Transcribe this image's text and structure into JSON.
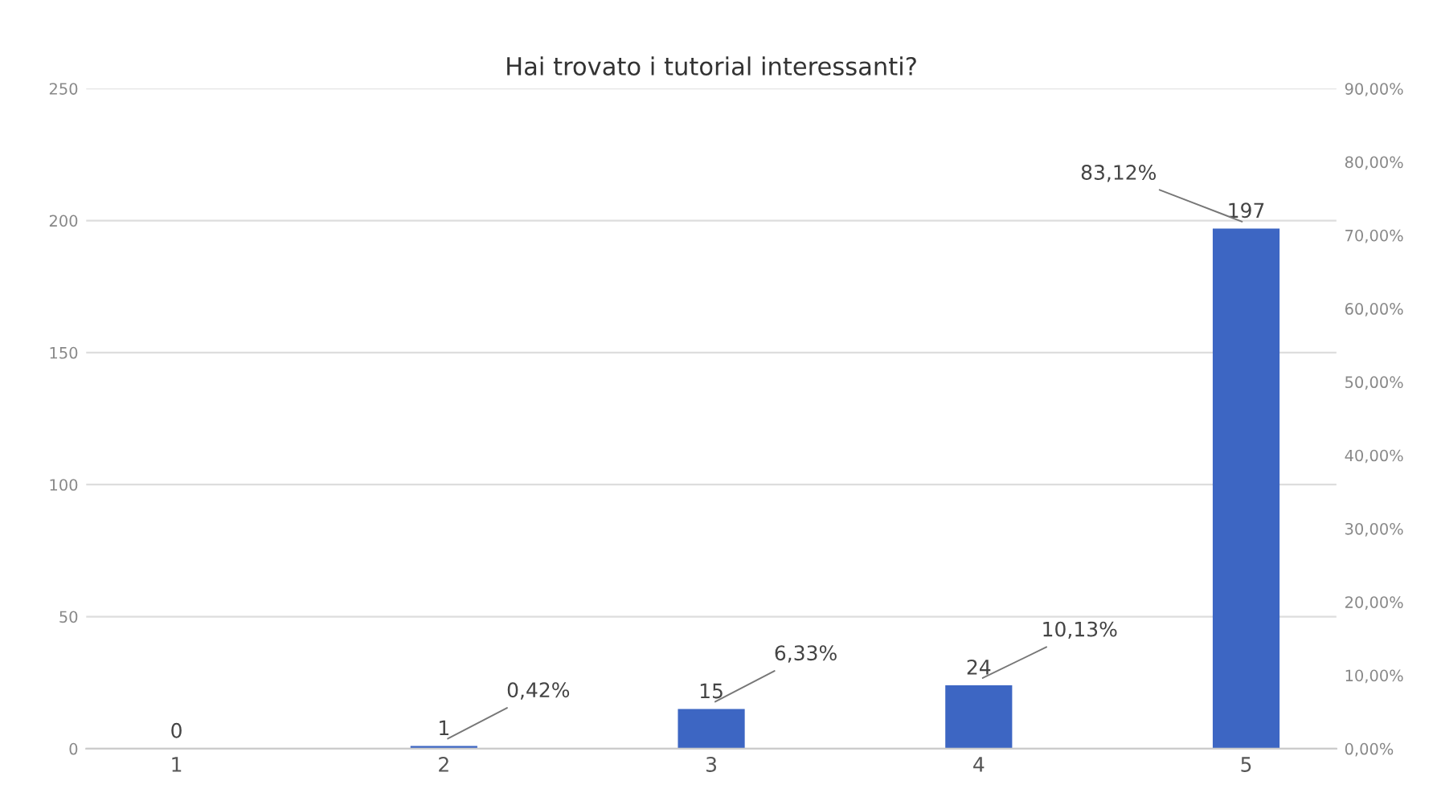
{
  "chart_data": {
    "type": "bar",
    "title": "Hai trovato i tutorial interessanti?",
    "categories": [
      "1",
      "2",
      "3",
      "4",
      "5"
    ],
    "series": [
      {
        "color": "#3d66c3",
        "values": [
          0,
          1,
          15,
          24,
          197
        ]
      }
    ],
    "data_labels": true,
    "ylim": [
      0,
      250
    ],
    "yticks": [
      0,
      50,
      100,
      150,
      200,
      250
    ],
    "y2lim": [
      0,
      90
    ],
    "y2ticks": [
      {
        "value": 0,
        "label": "0,00%"
      },
      {
        "value": 10,
        "label": "10,00%"
      },
      {
        "value": 20,
        "label": "20,00%"
      },
      {
        "value": 30,
        "label": "30,00%"
      },
      {
        "value": 40,
        "label": "40,00%"
      },
      {
        "value": 50,
        "label": "50,00%"
      },
      {
        "value": 60,
        "label": "60,00%"
      },
      {
        "value": 70,
        "label": "70,00%"
      },
      {
        "value": 80,
        "label": "80,00%"
      },
      {
        "value": 90,
        "label": "90,00%"
      }
    ],
    "grid": "y",
    "annotations": [
      {
        "text": "0,42%",
        "x": "2",
        "y": 1
      },
      {
        "text": "6,33%",
        "x": "3",
        "y": 15
      },
      {
        "text": "10,13%",
        "x": "4",
        "y": 24
      },
      {
        "text": "83,12%",
        "x": "5",
        "y": 197
      }
    ]
  }
}
